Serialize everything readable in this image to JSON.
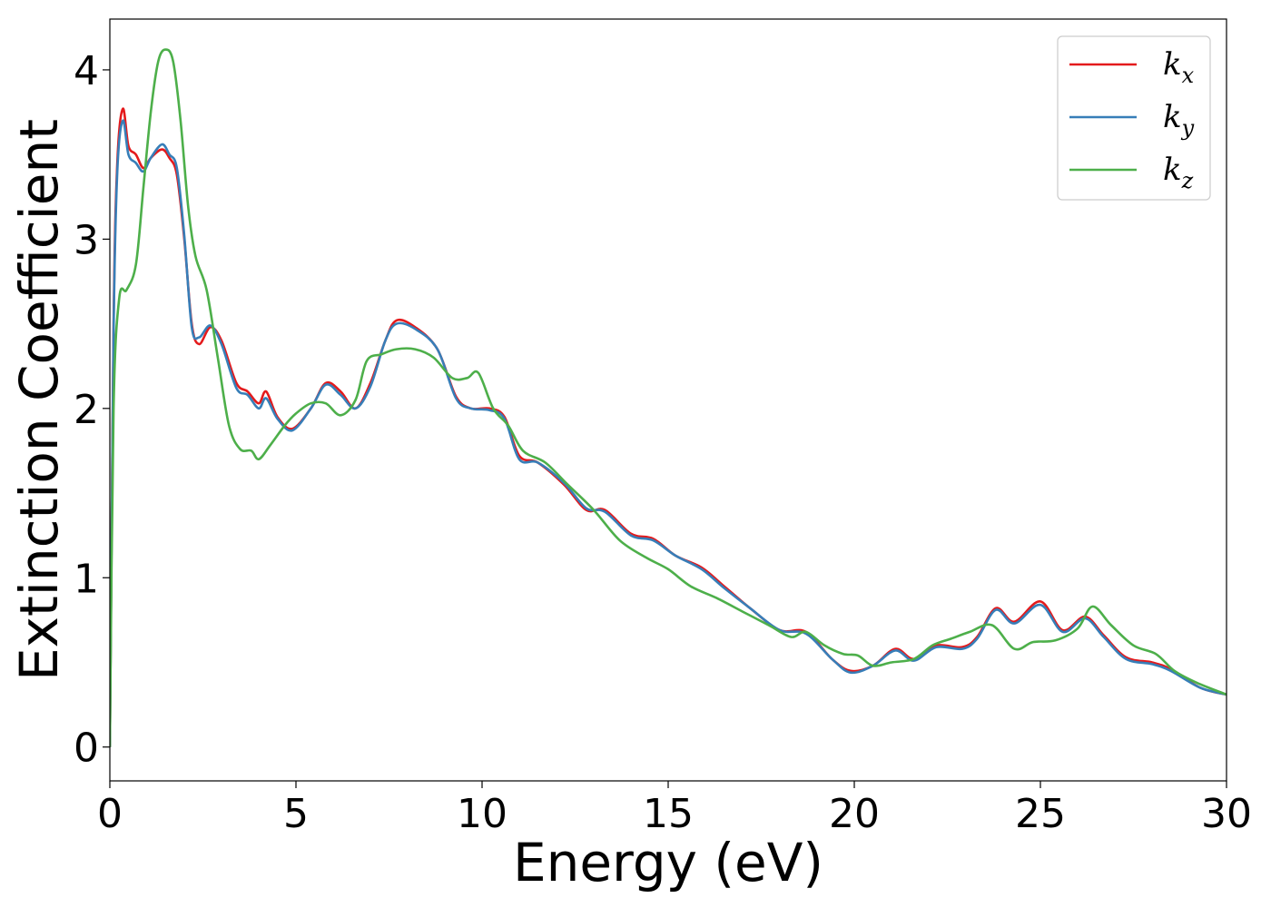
{
  "chart_data": {
    "type": "line",
    "title": "",
    "xlabel": "Energy (eV)",
    "ylabel": "Extinction Coefficient",
    "xlim": [
      0,
      30
    ],
    "ylim": [
      -0.2,
      4.3
    ],
    "xticks": [
      0,
      5,
      10,
      15,
      20,
      25,
      30
    ],
    "yticks": [
      0,
      1,
      2,
      3,
      4
    ],
    "grid": false,
    "legend_position": "top-right",
    "series": [
      {
        "name": "k_x",
        "label_base": "k",
        "label_sub": "x",
        "color": "#e41a1c",
        "x": [
          0,
          0.1,
          0.2,
          0.35,
          0.5,
          0.7,
          0.9,
          1.1,
          1.4,
          1.6,
          1.8,
          2.0,
          2.2,
          2.4,
          2.7,
          3.0,
          3.4,
          3.7,
          4.0,
          4.2,
          4.5,
          4.9,
          5.4,
          5.8,
          6.2,
          6.6,
          7.0,
          7.4,
          7.7,
          8.2,
          8.8,
          9.3,
          9.7,
          10.2,
          10.6,
          11.0,
          11.5,
          12.2,
          12.8,
          13.3,
          14.0,
          14.6,
          15.2,
          15.9,
          16.5,
          17.2,
          18.0,
          18.7,
          19.4,
          19.9,
          20.5,
          21.1,
          21.6,
          22.2,
          22.9,
          23.3,
          23.8,
          24.3,
          25.0,
          25.6,
          26.2,
          26.7,
          27.3,
          28.0,
          28.5,
          29.3,
          30.0
        ],
        "y": [
          0.0,
          2.5,
          3.45,
          3.77,
          3.55,
          3.5,
          3.42,
          3.48,
          3.53,
          3.48,
          3.38,
          3.0,
          2.5,
          2.38,
          2.48,
          2.4,
          2.15,
          2.1,
          2.03,
          2.1,
          1.95,
          1.88,
          2.0,
          2.15,
          2.1,
          2.0,
          2.15,
          2.4,
          2.52,
          2.48,
          2.35,
          2.07,
          2.0,
          2.0,
          1.95,
          1.72,
          1.68,
          1.55,
          1.4,
          1.4,
          1.26,
          1.23,
          1.13,
          1.06,
          0.95,
          0.82,
          0.69,
          0.68,
          0.52,
          0.45,
          0.48,
          0.58,
          0.52,
          0.6,
          0.59,
          0.65,
          0.82,
          0.74,
          0.86,
          0.69,
          0.77,
          0.66,
          0.53,
          0.5,
          0.46,
          0.35,
          0.31
        ]
      },
      {
        "name": "k_y",
        "label_base": "k",
        "label_sub": "y",
        "color": "#377eb8",
        "x": [
          0,
          0.1,
          0.2,
          0.35,
          0.5,
          0.7,
          0.9,
          1.1,
          1.4,
          1.6,
          1.8,
          2.0,
          2.2,
          2.4,
          2.7,
          3.0,
          3.4,
          3.7,
          4.0,
          4.2,
          4.5,
          4.9,
          5.4,
          5.8,
          6.2,
          6.6,
          7.0,
          7.4,
          7.7,
          8.2,
          8.8,
          9.3,
          9.7,
          10.2,
          10.6,
          11.0,
          11.5,
          12.2,
          12.8,
          13.3,
          14.0,
          14.6,
          15.2,
          15.9,
          16.5,
          17.2,
          18.0,
          18.7,
          19.4,
          19.9,
          20.5,
          21.1,
          21.6,
          22.2,
          22.9,
          23.3,
          23.8,
          24.3,
          25.0,
          25.6,
          26.2,
          26.7,
          27.3,
          28.0,
          28.5,
          29.3,
          30.0
        ],
        "y": [
          0.0,
          2.45,
          3.4,
          3.7,
          3.5,
          3.45,
          3.4,
          3.48,
          3.56,
          3.5,
          3.42,
          3.02,
          2.48,
          2.42,
          2.49,
          2.38,
          2.12,
          2.08,
          2.0,
          2.06,
          1.94,
          1.87,
          2.0,
          2.14,
          2.08,
          2.0,
          2.13,
          2.4,
          2.5,
          2.47,
          2.35,
          2.06,
          2.0,
          1.99,
          1.94,
          1.7,
          1.68,
          1.56,
          1.41,
          1.39,
          1.25,
          1.22,
          1.13,
          1.05,
          0.94,
          0.82,
          0.69,
          0.67,
          0.52,
          0.44,
          0.48,
          0.57,
          0.51,
          0.59,
          0.58,
          0.64,
          0.81,
          0.73,
          0.84,
          0.68,
          0.76,
          0.65,
          0.52,
          0.49,
          0.45,
          0.35,
          0.31
        ]
      },
      {
        "name": "k_z",
        "label_base": "k",
        "label_sub": "z",
        "color": "#4daf4a",
        "x": [
          0,
          0.1,
          0.25,
          0.45,
          0.7,
          0.9,
          1.1,
          1.3,
          1.5,
          1.7,
          1.9,
          2.1,
          2.3,
          2.6,
          2.9,
          3.2,
          3.5,
          3.8,
          4.0,
          4.3,
          4.7,
          5.0,
          5.4,
          5.8,
          6.2,
          6.6,
          6.9,
          7.3,
          7.7,
          8.2,
          8.7,
          9.2,
          9.6,
          9.9,
          10.3,
          10.7,
          11.1,
          11.7,
          12.3,
          13.0,
          13.7,
          14.4,
          15.0,
          15.6,
          16.3,
          17.0,
          17.7,
          18.3,
          18.7,
          19.2,
          19.7,
          20.1,
          20.5,
          21.0,
          21.6,
          22.1,
          22.6,
          23.1,
          23.7,
          24.3,
          24.8,
          25.4,
          26.0,
          26.4,
          26.9,
          27.5,
          28.1,
          28.6,
          29.2,
          30.0
        ],
        "y": [
          0.0,
          2.0,
          2.65,
          2.7,
          2.85,
          3.3,
          3.75,
          4.05,
          4.12,
          4.05,
          3.7,
          3.2,
          2.9,
          2.7,
          2.3,
          1.9,
          1.76,
          1.75,
          1.7,
          1.78,
          1.9,
          1.97,
          2.03,
          2.03,
          1.96,
          2.05,
          2.28,
          2.32,
          2.35,
          2.35,
          2.3,
          2.18,
          2.18,
          2.21,
          2.0,
          1.9,
          1.75,
          1.68,
          1.55,
          1.4,
          1.22,
          1.12,
          1.05,
          0.95,
          0.88,
          0.8,
          0.72,
          0.65,
          0.68,
          0.6,
          0.55,
          0.54,
          0.48,
          0.5,
          0.52,
          0.6,
          0.64,
          0.68,
          0.72,
          0.58,
          0.62,
          0.63,
          0.7,
          0.83,
          0.72,
          0.6,
          0.55,
          0.45,
          0.38,
          0.31
        ]
      }
    ]
  }
}
